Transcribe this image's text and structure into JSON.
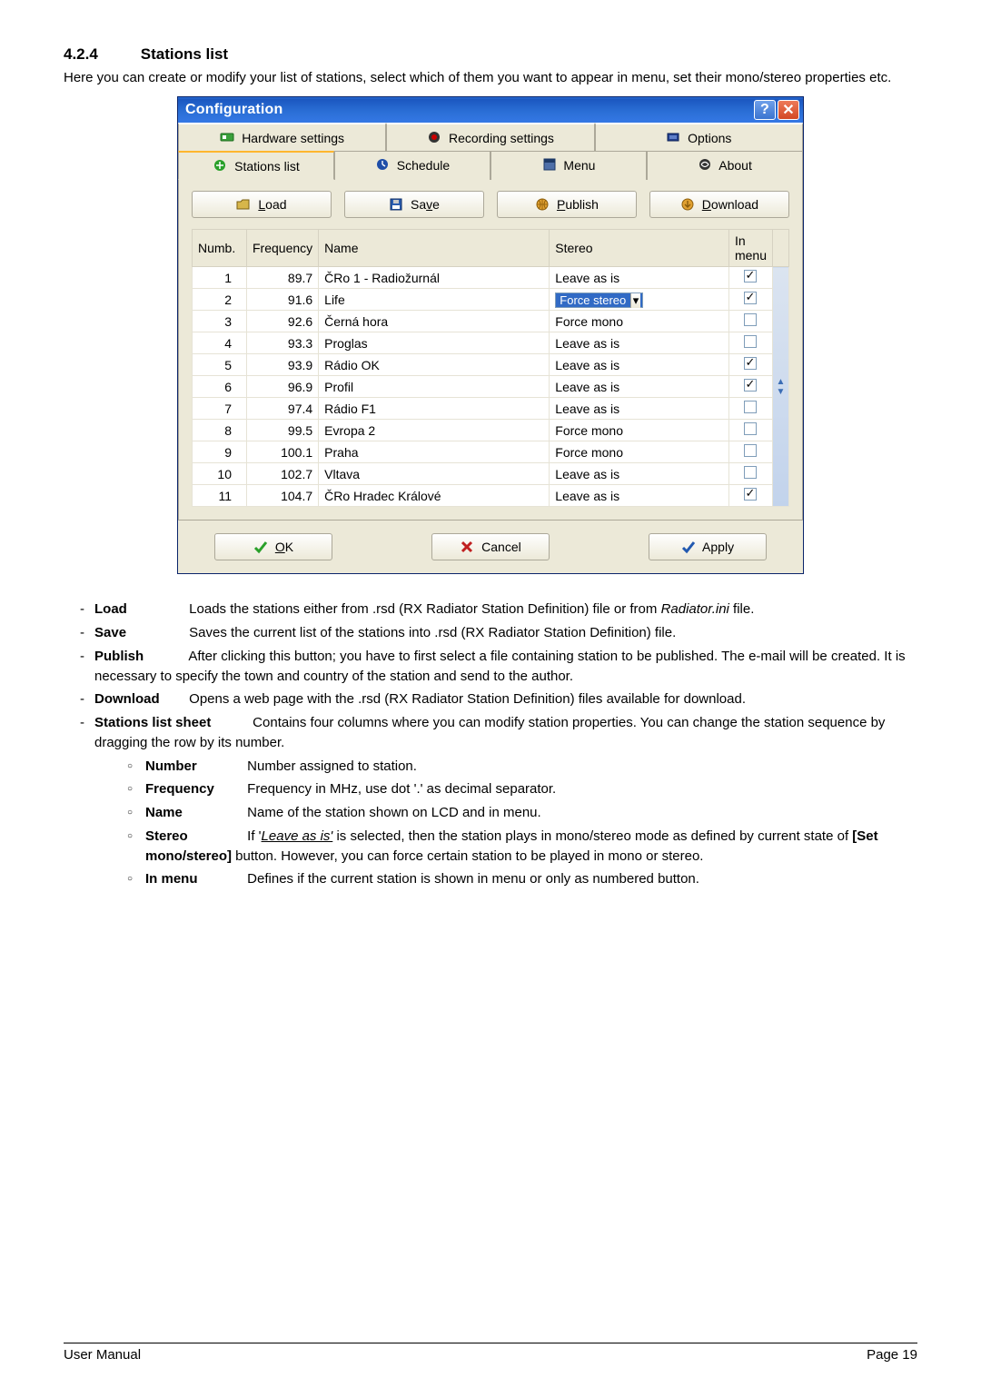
{
  "heading": {
    "number": "4.2.4",
    "title": "Stations list"
  },
  "intro": "Here you can create or modify your list of stations, select which of them you want to appear in menu, set their mono/stereo properties etc.",
  "dialog": {
    "title": "Configuration",
    "accent_gradient": [
      "#2a6ed5",
      "#1b57c0"
    ],
    "bg": "#ece9d8",
    "border": "#aca899",
    "highlight": "#316ac5",
    "tabs_row1": [
      {
        "icon": "hardware",
        "label": "Hardware settings"
      },
      {
        "icon": "record",
        "label": "Recording settings"
      },
      {
        "icon": "options",
        "label": "Options"
      }
    ],
    "tabs_row2": [
      {
        "icon": "stations",
        "label": "Stations list",
        "active": true
      },
      {
        "icon": "schedule",
        "label": "Schedule"
      },
      {
        "icon": "menu",
        "label": "Menu"
      },
      {
        "icon": "about",
        "label": "About"
      }
    ],
    "buttons": {
      "load": {
        "label": "Load",
        "mnemonic": "L",
        "icon": "folder"
      },
      "save": {
        "label": "Save",
        "mnemonic": "v",
        "icon": "disk"
      },
      "publish": {
        "label": "Publish",
        "mnemonic": "P",
        "icon": "globe"
      },
      "download": {
        "label": "Download",
        "mnemonic": "D",
        "icon": "download"
      }
    },
    "columns": [
      "Numb.",
      "Frequency",
      "Name",
      "Stereo",
      "In menu"
    ],
    "rows": [
      {
        "n": 1,
        "freq": "89.7",
        "name": "ČRo 1 - Radiožurnál",
        "stereo": "Leave as is",
        "inmenu": true
      },
      {
        "n": 2,
        "freq": "91.6",
        "name": "Life",
        "stereo": "Force stereo",
        "inmenu": true,
        "selected": true
      },
      {
        "n": 3,
        "freq": "92.6",
        "name": "Černá hora",
        "stereo": "Force mono",
        "inmenu": false
      },
      {
        "n": 4,
        "freq": "93.3",
        "name": "Proglas",
        "stereo": "Leave as is",
        "inmenu": false
      },
      {
        "n": 5,
        "freq": "93.9",
        "name": "Rádio OK",
        "stereo": "Leave as is",
        "inmenu": true
      },
      {
        "n": 6,
        "freq": "96.9",
        "name": "Profil",
        "stereo": "Leave as is",
        "inmenu": true
      },
      {
        "n": 7,
        "freq": "97.4",
        "name": "Rádio F1",
        "stereo": "Leave as is",
        "inmenu": false
      },
      {
        "n": 8,
        "freq": "99.5",
        "name": "Evropa 2",
        "stereo": "Force mono",
        "inmenu": false
      },
      {
        "n": 9,
        "freq": "100.1",
        "name": "Praha",
        "stereo": "Force mono",
        "inmenu": false
      },
      {
        "n": 10,
        "freq": "102.7",
        "name": "Vltava",
        "stereo": "Leave as is",
        "inmenu": false
      },
      {
        "n": 11,
        "freq": "104.7",
        "name": "ČRo Hradec Králové",
        "stereo": "Leave as is",
        "inmenu": true
      }
    ],
    "dlg_buttons": {
      "ok": {
        "label": "OK",
        "mnemonic": "O",
        "icon": "check-green"
      },
      "cancel": {
        "label": "Cancel",
        "icon": "x-red"
      },
      "apply": {
        "label": "Apply",
        "icon": "check-blue"
      }
    }
  },
  "defs": {
    "load": {
      "term": "Load",
      "text": "Loads the stations either from .rsd (RX Radiator Station Definition) file or from ",
      "ital": "Radiator.ini",
      "after": " file."
    },
    "save": {
      "term": "Save",
      "text": "Saves the current list of the stations into .rsd (RX Radiator Station Definition) file."
    },
    "publish": {
      "term": "Publish",
      "text": "After clicking this button; you have to first select a file containing station to be published. The e-mail will be created. It is necessary to specify the town and country of the station and send to the author."
    },
    "download": {
      "term": "Download",
      "text": "Opens a web page with the .rsd (RX Radiator Station Definition) files available for download."
    },
    "sheet": {
      "term": "Stations list sheet",
      "text": "Contains four columns where you can modify station properties. You can change the station sequence by dragging the row by its number."
    },
    "sub": {
      "number": {
        "term": "Number",
        "text": "Number assigned to station."
      },
      "frequency": {
        "term": "Frequency",
        "text": "Frequency in MHz, use dot '.' as decimal separator."
      },
      "name": {
        "term": "Name",
        "text": "Name of the station shown on LCD and in menu."
      },
      "stereo": {
        "term": "Stereo",
        "pre": "If '",
        "ital": "Leave as is'",
        "mid": " is selected, then the station plays in mono/stereo mode as defined by current state of ",
        "bold": "[Set mono/stereo]",
        "after": " button. However, you can force certain station to be played in mono or stereo."
      },
      "inmenu": {
        "term": "In menu",
        "text": "Defines if the current station is shown in menu or only as numbered button."
      }
    }
  },
  "footer": {
    "left": "User Manual",
    "right": "Page 19"
  }
}
